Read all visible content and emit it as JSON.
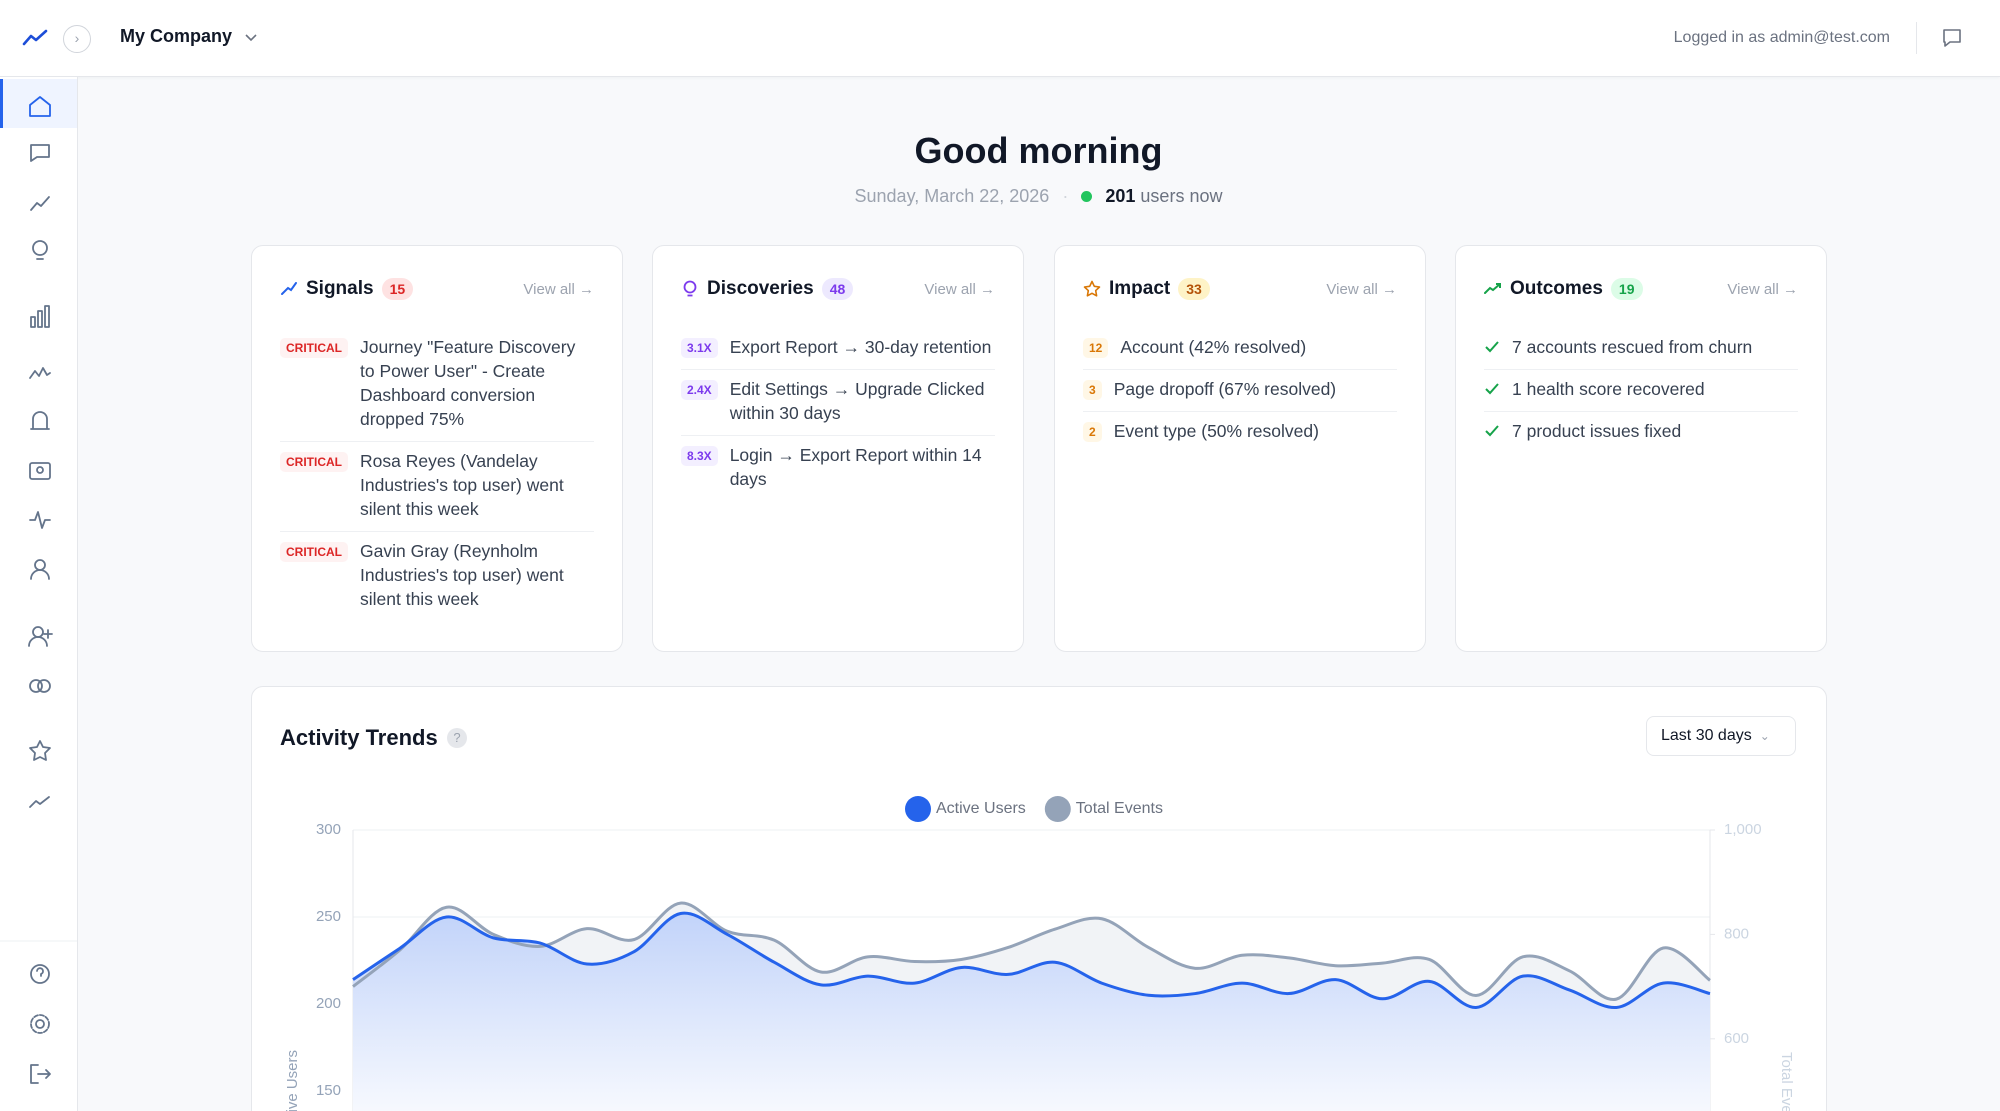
{
  "header": {
    "company": "My Company",
    "logged_in": "Logged in as admin@test.com"
  },
  "greeting": {
    "title": "Good morning",
    "date": "Sunday, March 22, 2026",
    "users_count": 201,
    "users_suffix": "users now"
  },
  "cards": [
    {
      "title": "Signals",
      "count": 15,
      "view_all": "View all →",
      "items": [
        {
          "badge": "CRITICAL",
          "text": "Journey \"Feature Discovery to Power User\" - Create Dashboard conversion dropped 75%"
        },
        {
          "badge": "CRITICAL",
          "text": "Rosa Reyes (Vandelay Industries's top user) went silent this week"
        },
        {
          "badge": "CRITICAL",
          "text": "Gavin Gray (Reynholm Industries's top user) went silent this week"
        }
      ]
    },
    {
      "title": "Discoveries",
      "count": 48,
      "view_all": "View all →",
      "items": [
        {
          "badge": "3.1X",
          "text": "Export Report → 30-day retention"
        },
        {
          "badge": "2.4X",
          "text": "Edit Settings → Upgrade Clicked within 30 days"
        },
        {
          "badge": "8.3X",
          "text": "Login → Export Report within 14 days"
        }
      ]
    },
    {
      "title": "Impact",
      "count": 33,
      "view_all": "View all →",
      "items": [
        {
          "badge": 12,
          "text": "Account (42% resolved)"
        },
        {
          "badge": 3,
          "text": "Page dropoff (67% resolved)"
        },
        {
          "badge": 2,
          "text": "Event type (50% resolved)"
        }
      ]
    },
    {
      "title": "Outcomes",
      "count": 19,
      "view_all": "View all →",
      "items": [
        {
          "text": "7 accounts rescued from churn"
        },
        {
          "text": "1 health score recovered"
        },
        {
          "text": "7 product issues fixed"
        }
      ]
    }
  ],
  "activity": {
    "title": "Activity Trends",
    "help": "?",
    "range": "Last 30 days",
    "chart_data": {
      "type": "line",
      "y_label": "Active Users",
      "y2_label": "Total Events",
      "ylim": [
        150,
        300
      ],
      "yticks": [
        150,
        200,
        250,
        300
      ],
      "y2lim": [
        500,
        1000
      ],
      "y2ticks": [
        600,
        800,
        {
          "value": 1000,
          "label": "1,000"
        }
      ],
      "grid": true,
      "series": [
        {
          "name": "Active Users",
          "color": "#2563eb",
          "axis": "y",
          "values": [
            214,
            232,
            250,
            238,
            235,
            223,
            230,
            252,
            240,
            224,
            211,
            216,
            212,
            221,
            217,
            224,
            212,
            205,
            206,
            212,
            206,
            214,
            203,
            213,
            198,
            216,
            208,
            198,
            212,
            206
          ]
        },
        {
          "name": "Total Events",
          "color": "#94a3b8",
          "axis": "y2",
          "values": [
            700,
            770,
            852,
            800,
            777,
            811,
            790,
            860,
            806,
            789,
            728,
            757,
            748,
            752,
            775,
            810,
            830,
            775,
            735,
            760,
            755,
            740,
            745,
            752,
            683,
            757,
            730,
            676,
            774,
            712
          ]
        }
      ]
    }
  }
}
